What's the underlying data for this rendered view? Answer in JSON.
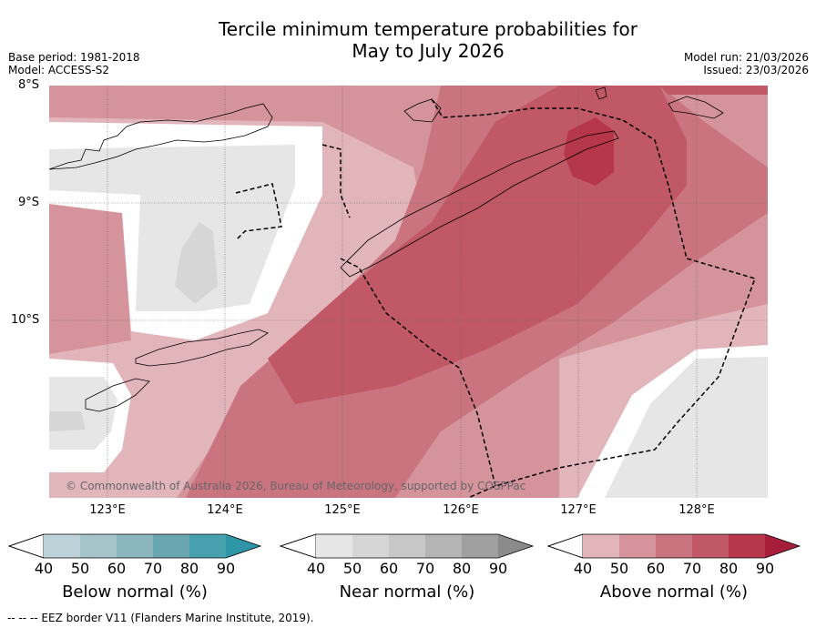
{
  "title_line1": "Tercile minimum temperature probabilities for",
  "title_line2": "May to July 2026",
  "base_period": "Base period: 1981-2018",
  "model": "Model: ACCESS-S2",
  "model_run": "Model run: 21/03/2026",
  "issued": "Issued: 23/03/2026",
  "lat_labels": [
    "8°S",
    "9°S",
    "10°S"
  ],
  "lon_labels": [
    "123°E",
    "124°E",
    "125°E",
    "126°E",
    "127°E",
    "128°E"
  ],
  "copyright": "© Commonwealth of Australia 2026, Bureau of Meteorology, supported by COSPPac",
  "colorbars": [
    {
      "name": "below",
      "label": "Below normal (%)",
      "ticks": [
        "40",
        "50",
        "60",
        "70",
        "80",
        "90"
      ],
      "colors": [
        "#bcd3d9",
        "#a5c5cb",
        "#8bb6bf",
        "#6aa6b1",
        "#47a0ae",
        "#2f96a8"
      ]
    },
    {
      "name": "near",
      "label": "Near normal (%)",
      "ticks": [
        "40",
        "50",
        "60",
        "70",
        "80",
        "90"
      ],
      "colors": [
        "#e6e6e6",
        "#d6d6d6",
        "#c8c8c8",
        "#b4b4b4",
        "#9f9f9f",
        "#8a8a8a"
      ]
    },
    {
      "name": "above",
      "label": "Above normal (%)",
      "ticks": [
        "40",
        "50",
        "60",
        "70",
        "80",
        "90"
      ],
      "colors": [
        "#e2b5bb",
        "#d5939c",
        "#ca747f",
        "#c05965",
        "#b6364a",
        "#a61e39"
      ]
    }
  ],
  "footer": "--  --  -- EEZ border V11 (Flanders Marine Institute, 2019)."
}
